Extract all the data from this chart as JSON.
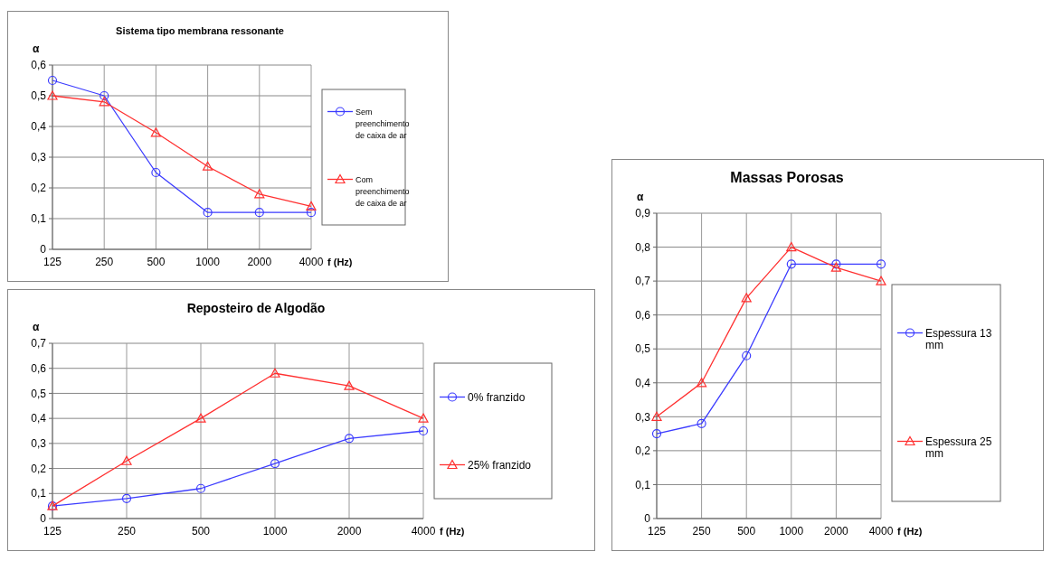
{
  "chart_data": [
    {
      "type": "line",
      "title": "Sistema tipo membrana ressonante",
      "xlabel": "f (Hz)",
      "ylabel": "α",
      "categories": [
        "125",
        "250",
        "500",
        "1000",
        "2000",
        "4000"
      ],
      "ylim": [
        0,
        0.6
      ],
      "yticks": [
        {
          "value": 0,
          "label": "0"
        },
        {
          "value": 0.1,
          "label": "0,1"
        },
        {
          "value": 0.2,
          "label": "0,2"
        },
        {
          "value": 0.3,
          "label": "0,3"
        },
        {
          "value": 0.4,
          "label": "0,4"
        },
        {
          "value": 0.5,
          "label": "0,5"
        },
        {
          "value": 0.6,
          "label": "0,6"
        }
      ],
      "grid": true,
      "legend": "right",
      "series": [
        {
          "name": "Sem preenchimento de caixa de ar",
          "color": "#3b3bff",
          "marker": "circle",
          "values": [
            0.55,
            0.5,
            0.25,
            0.12,
            0.12,
            0.12
          ]
        },
        {
          "name": "Com preenchimento de caixa de ar",
          "color": "#ff3030",
          "marker": "triangle",
          "values": [
            0.5,
            0.48,
            0.38,
            0.27,
            0.18,
            0.14
          ]
        }
      ]
    },
    {
      "type": "line",
      "title": "Reposteiro de Algodão",
      "xlabel": "f (Hz)",
      "ylabel": "α",
      "categories": [
        "125",
        "250",
        "500",
        "1000",
        "2000",
        "4000"
      ],
      "ylim": [
        0,
        0.7
      ],
      "yticks": [
        {
          "value": 0,
          "label": "0"
        },
        {
          "value": 0.1,
          "label": "0,1"
        },
        {
          "value": 0.2,
          "label": "0,2"
        },
        {
          "value": 0.3,
          "label": "0,3"
        },
        {
          "value": 0.4,
          "label": "0,4"
        },
        {
          "value": 0.5,
          "label": "0,5"
        },
        {
          "value": 0.6,
          "label": "0,6"
        },
        {
          "value": 0.7,
          "label": "0,7"
        }
      ],
      "grid": true,
      "legend": "right",
      "series": [
        {
          "name": "0% franzido",
          "color": "#3b3bff",
          "marker": "circle",
          "values": [
            0.05,
            0.08,
            0.12,
            0.22,
            0.32,
            0.35
          ]
        },
        {
          "name": "25% franzido",
          "color": "#ff3030",
          "marker": "triangle",
          "values": [
            0.05,
            0.23,
            0.4,
            0.58,
            0.53,
            0.4
          ]
        }
      ]
    },
    {
      "type": "line",
      "title": "Massas Porosas",
      "xlabel": "f (Hz)",
      "ylabel": "α",
      "categories": [
        "125",
        "250",
        "500",
        "1000",
        "2000",
        "4000"
      ],
      "ylim": [
        0,
        0.9
      ],
      "yticks": [
        {
          "value": 0,
          "label": "0"
        },
        {
          "value": 0.1,
          "label": "0,1"
        },
        {
          "value": 0.2,
          "label": "0,2"
        },
        {
          "value": 0.3,
          "label": "0,3"
        },
        {
          "value": 0.4,
          "label": "0,4"
        },
        {
          "value": 0.5,
          "label": "0,5"
        },
        {
          "value": 0.6,
          "label": "0,6"
        },
        {
          "value": 0.7,
          "label": "0,7"
        },
        {
          "value": 0.8,
          "label": "0,8"
        },
        {
          "value": 0.9,
          "label": "0,9"
        }
      ],
      "grid": true,
      "legend": "right",
      "series": [
        {
          "name": "Espessura 13 mm",
          "color": "#3b3bff",
          "marker": "circle",
          "values": [
            0.25,
            0.28,
            0.48,
            0.75,
            0.75,
            0.75
          ]
        },
        {
          "name": "Espessura 25 mm",
          "color": "#ff3030",
          "marker": "triangle",
          "values": [
            0.3,
            0.4,
            0.65,
            0.8,
            0.74,
            0.7
          ]
        }
      ]
    }
  ]
}
